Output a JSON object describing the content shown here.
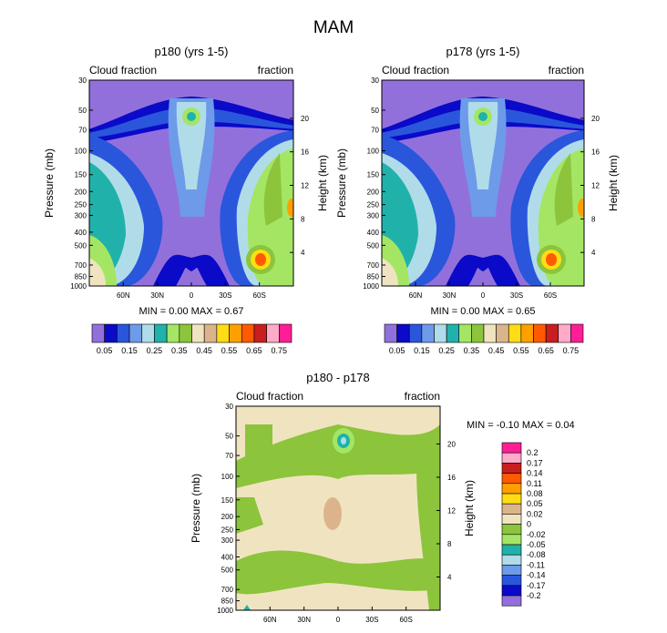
{
  "figure_title": "MAM",
  "palette": [
    "#9270dc",
    "#0a0ac8",
    "#2a56dc",
    "#6e9aea",
    "#b0dcea",
    "#20b2aa",
    "#a4e664",
    "#8cc43c",
    "#f0e4c0",
    "#dcb48c",
    "#ffdc14",
    "#ffa000",
    "#ff5a00",
    "#c81e1e",
    "#ffaac8",
    "#ff1e96"
  ],
  "chart_data": [
    {
      "type": "heatmap",
      "title": "p180 (yrs 1-5)",
      "label_left": "Cloud fraction",
      "label_right": "fraction",
      "ylabel": "Pressure (mb)",
      "ylabel_right": "Height (km)",
      "pressure_ticks": [
        "30",
        "50",
        "70",
        "100",
        "150",
        "200",
        "250",
        "300",
        "400",
        "500",
        "700",
        "850",
        "1000"
      ],
      "height_ticks": [
        "20",
        "16",
        "12",
        "8",
        "4"
      ],
      "lat_ticks": [
        "60N",
        "30N",
        "0",
        "30S",
        "60S"
      ],
      "min_max": "MIN =   0.00   MAX =   0.67",
      "colorbar_labels": [
        "0.05",
        "0.15",
        "0.25",
        "0.35",
        "0.45",
        "0.55",
        "0.65",
        "0.75"
      ]
    },
    {
      "type": "heatmap",
      "title": "p178 (yrs 1-5)",
      "label_left": "Cloud fraction",
      "label_right": "fraction",
      "ylabel": "Pressure (mb)",
      "ylabel_right": "Height (km)",
      "pressure_ticks": [
        "30",
        "50",
        "70",
        "100",
        "150",
        "200",
        "250",
        "300",
        "400",
        "500",
        "700",
        "850",
        "1000"
      ],
      "height_ticks": [
        "20",
        "16",
        "12",
        "8",
        "4"
      ],
      "lat_ticks": [
        "60N",
        "30N",
        "0",
        "30S",
        "60S"
      ],
      "min_max": "MIN =   0.00   MAX =   0.65",
      "colorbar_labels": [
        "0.05",
        "0.15",
        "0.25",
        "0.35",
        "0.45",
        "0.55",
        "0.65",
        "0.75"
      ]
    },
    {
      "type": "heatmap",
      "title": "p180 - p178",
      "label_left": "Cloud fraction",
      "label_right": "fraction",
      "ylabel": "Pressure (mb)",
      "ylabel_right": "Height (km)",
      "pressure_ticks": [
        "30",
        "50",
        "70",
        "100",
        "150",
        "200",
        "250",
        "300",
        "400",
        "500",
        "700",
        "850",
        "1000"
      ],
      "height_ticks": [
        "20",
        "16",
        "12",
        "8",
        "4"
      ],
      "lat_ticks": [
        "60N",
        "30N",
        "0",
        "30S",
        "60S"
      ],
      "min_max": "MIN =  -0.10   MAX =   0.04",
      "colorbar_labels": [
        "0.2",
        "0.17",
        "0.14",
        "0.11",
        "0.08",
        "0.05",
        "0.02",
        "0",
        "-0.02",
        "-0.05",
        "-0.08",
        "-0.11",
        "-0.14",
        "-0.17",
        "-0.2"
      ]
    }
  ]
}
